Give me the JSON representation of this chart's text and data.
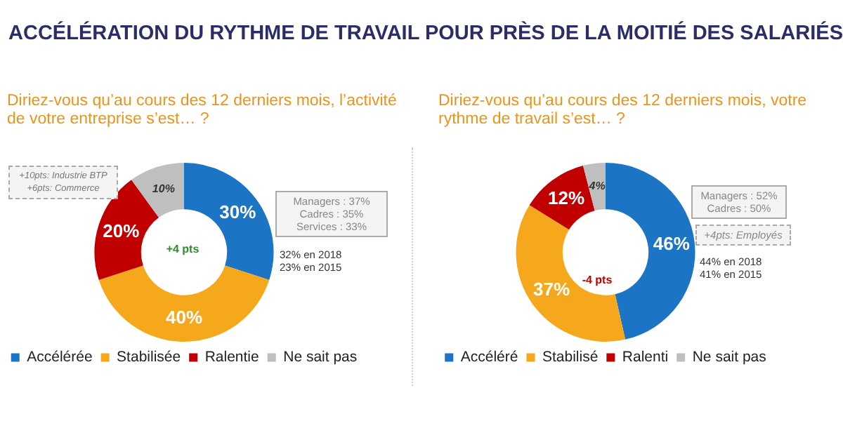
{
  "chart_data": [
    {
      "type": "donut",
      "title": "ACCÉLÉRATION DU RYTHME DE TRAVAIL POUR PRÈS DE LA MOITIÉ DES SALARIÉS",
      "subtitle": "Diriez-vous qu’au cours des 12 derniers mois, l’activité de votre entreprise s’est… ?",
      "categories": [
        "Accélérée",
        "Stabilisée",
        "Ralentie",
        "Ne sait pas"
      ],
      "values": [
        30,
        40,
        20,
        10
      ],
      "value_labels": [
        "30%",
        "40%",
        "20%",
        "10%"
      ],
      "colors": [
        "#1b75c4",
        "#f5a81c",
        "#c00000",
        "#bfbfbf"
      ],
      "legend": "bottom",
      "annotations": [
        "+10pts: Industrie BTP\n+6pts: Commerce",
        "Managers : 37%\nCadres : 35%\nServices : 33%",
        "+4 pts",
        "32% en 2018\n23% en 2015"
      ]
    },
    {
      "type": "donut",
      "subtitle": "Diriez-vous qu’au cours des 12 derniers mois, votre rythme de travail s’est… ?",
      "categories": [
        "Accéléré",
        "Stabilisé",
        "Ralenti",
        "Ne sait pas"
      ],
      "values": [
        46,
        37,
        12,
        4
      ],
      "value_labels": [
        "46%",
        "37%",
        "12%",
        "4%"
      ],
      "colors": [
        "#1b75c4",
        "#f5a81c",
        "#c00000",
        "#bfbfbf"
      ],
      "legend": "bottom",
      "annotations": [
        "Managers : 52%\nCadres : 50%",
        "+4pts: Employés",
        "-4 pts",
        "44% en 2018\n41% en 2015"
      ]
    }
  ]
}
